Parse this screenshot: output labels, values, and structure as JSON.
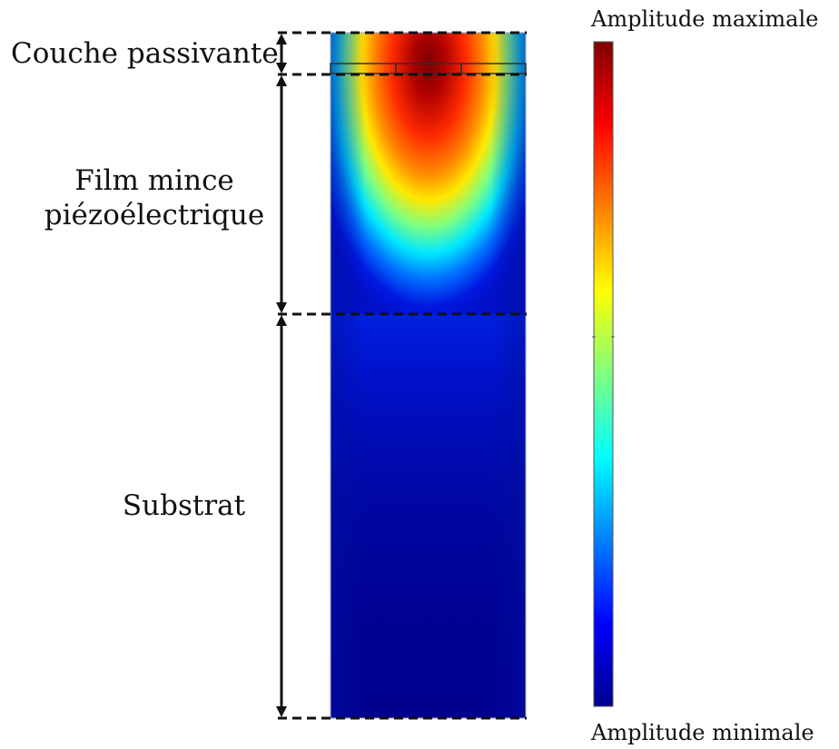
{
  "labels": {
    "passivation_layer": "Couche passivante",
    "thin_film_line1": "Film mince",
    "thin_film_line2": "piézoélectrique",
    "substrate": "Substrat"
  },
  "color_scale": {
    "max_label": "Amplitude maximale",
    "min_label": "Amplitude minimale",
    "colormap": "jet",
    "stops": [
      "#00008f",
      "#0000ff",
      "#00ffff",
      "#ffff00",
      "#ff0000",
      "#800000"
    ]
  }
}
